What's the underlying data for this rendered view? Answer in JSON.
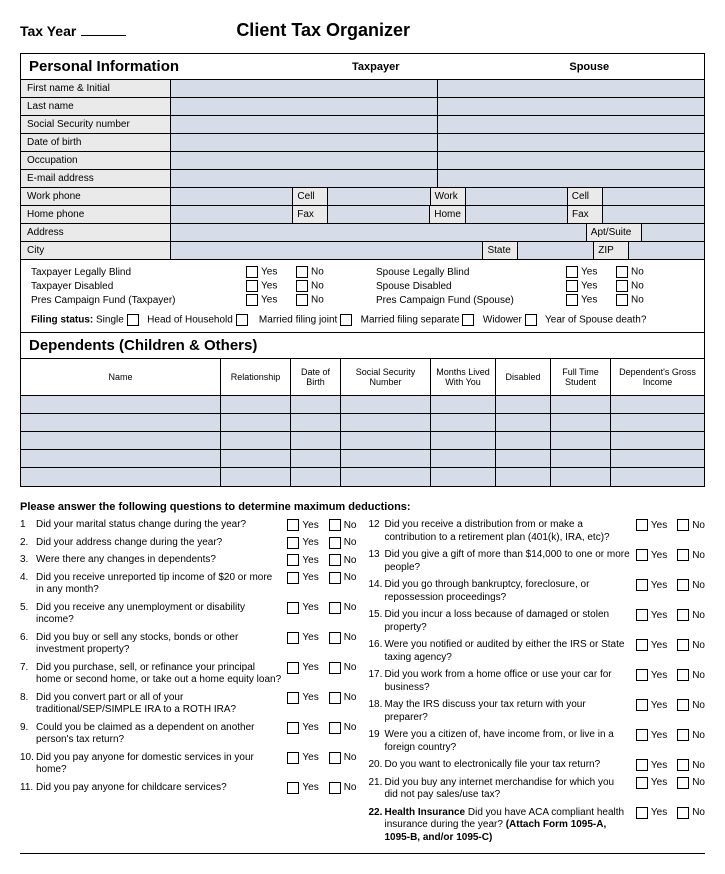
{
  "header": {
    "tax_year_label": "Tax Year",
    "title": "Client Tax Organizer"
  },
  "personal": {
    "section_title": "Personal Information",
    "taxpayer_col": "Taxpayer",
    "spouse_col": "Spouse",
    "rows": {
      "first_name": "First name & Initial",
      "last_name": "Last name",
      "ssn": "Social Security number",
      "dob": "Date of birth",
      "occupation": "Occupation",
      "email": "E-mail address",
      "work_phone": "Work phone",
      "home_phone": "Home phone",
      "address": "Address",
      "city": "City",
      "cell": "Cell",
      "fax": "Fax",
      "work": "Work",
      "home": "Home",
      "apt": "Apt/Suite",
      "state": "State",
      "zip": "ZIP"
    },
    "checks": {
      "tp_blind": "Taxpayer Legally Blind",
      "tp_disabled": "Taxpayer Disabled",
      "tp_fund": "Pres Campaign Fund (Taxpayer)",
      "sp_blind": "Spouse Legally Blind",
      "sp_disabled": "Spouse Disabled",
      "sp_fund": "Pres Campaign Fund (Spouse)",
      "yes": "Yes",
      "no": "No"
    },
    "filing": {
      "label": "Filing status:",
      "single": "Single",
      "hoh": "Head of Household",
      "mfj": "Married filing joint",
      "mfs": "Married filing separate",
      "widower": "Widower",
      "spouse_death": "Year of Spouse death?"
    }
  },
  "dependents": {
    "section_title": "Dependents (Children & Others)",
    "headers": {
      "name": "Name",
      "rel": "Relationship",
      "dob": "Date of Birth",
      "ssn": "Social Security Number",
      "months": "Months Lived With You",
      "disabled": "Disabled",
      "student": "Full Time Student",
      "income": "Dependent's Gross Income"
    }
  },
  "questions_intro": "Please answer the following questions to determine maximum deductions:",
  "yes": "Yes",
  "no": "No",
  "left_q": [
    {
      "n": "1",
      "t": "Did your marital status change during the year?"
    },
    {
      "n": "2.",
      "t": "Did your address change during the year?"
    },
    {
      "n": "3.",
      "t": "Were there any changes in dependents?"
    },
    {
      "n": "4.",
      "t": "Did you receive unreported tip income of $20 or more in any month?"
    },
    {
      "n": "5.",
      "t": "Did you receive any unemployment or disability income?"
    },
    {
      "n": "6.",
      "t": "Did you buy or sell any stocks, bonds or other investment property?"
    },
    {
      "n": "7.",
      "t": "Did you purchase, sell, or refinance your principal home or second home, or take out a home equity loan?"
    },
    {
      "n": "8.",
      "t": "Did you convert part or all of your traditional/SEP/SIMPLE IRA to a ROTH IRA?"
    },
    {
      "n": "9.",
      "t": "Could you be claimed as a dependent on another person's tax return?"
    },
    {
      "n": "10.",
      "t": "Did you pay anyone for domestic services in your home?"
    },
    {
      "n": "11.",
      "t": "Did you pay anyone for childcare services?"
    }
  ],
  "right_q": [
    {
      "n": "12",
      "t": "Did you receive a distribution from or make a contribution to a retirement plan (401(k), IRA, etc)?"
    },
    {
      "n": "13",
      "t": "Did you give a gift of more than $14,000 to one or more people?"
    },
    {
      "n": "14.",
      "t": "Did you go through bankruptcy, foreclosure, or repossession proceedings?"
    },
    {
      "n": "15.",
      "t": "Did you incur a loss because of damaged or stolen property?"
    },
    {
      "n": "16.",
      "t": "Were you notified or audited by either the IRS or State taxing agency?"
    },
    {
      "n": "17.",
      "t": "Did you work from a home office or use your car for business?"
    },
    {
      "n": "18.",
      "t": "May the IRS discuss your tax return with your preparer?"
    },
    {
      "n": "19",
      "t": "Were you a citizen of, have income from, or live in a foreign country?"
    },
    {
      "n": "20.",
      "t": "Do you want to electronically file your tax return?"
    },
    {
      "n": "21.",
      "t": "Did you buy any internet merchandise for which you did not pay sales/use tax?"
    }
  ],
  "q22": {
    "n": "22.",
    "bold": "Health Insurance",
    "rest": " Did you have ACA compliant health insurance during the year? ",
    "attach": "(Attach Form 1095-A, 1095-B, and/or 1095-C)"
  }
}
